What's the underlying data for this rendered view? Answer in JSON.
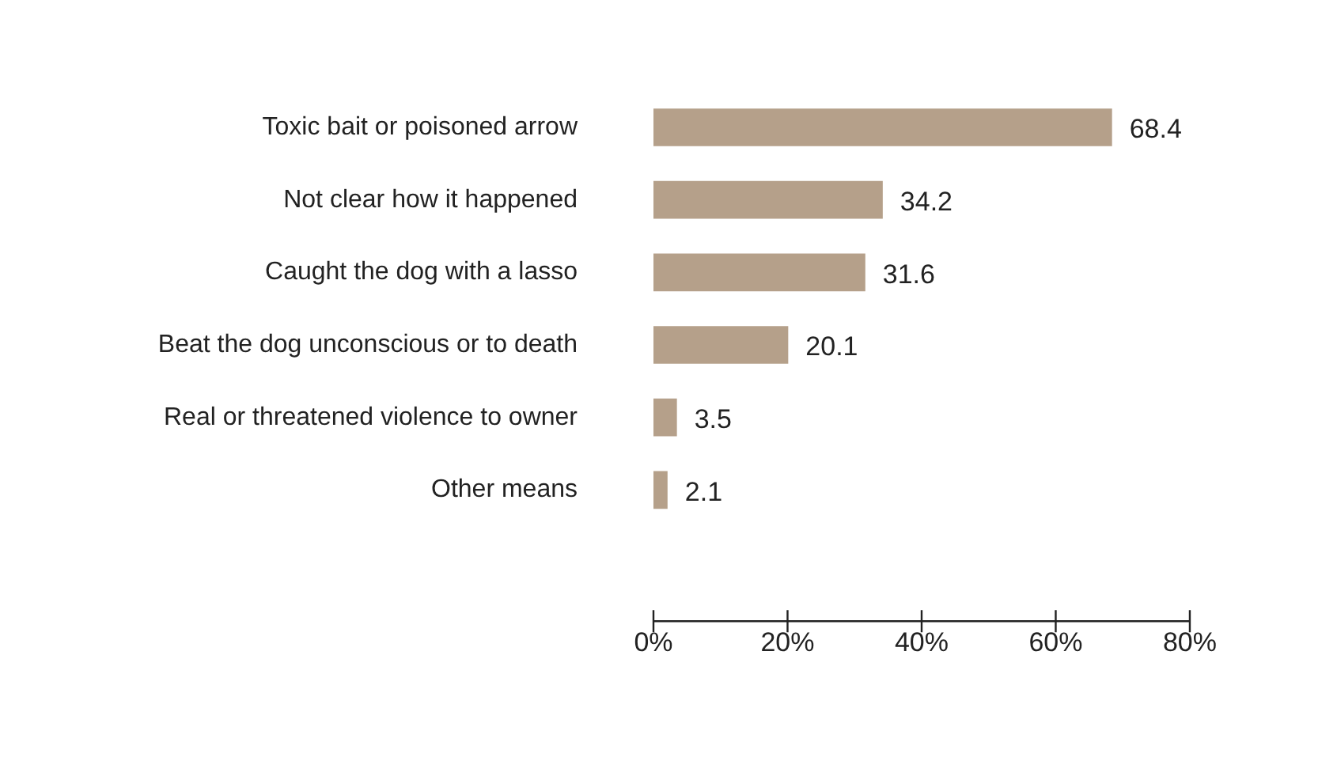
{
  "chart_data": {
    "type": "bar",
    "orientation": "horizontal",
    "categories": [
      "Toxic bait or poisoned arrow",
      "Not clear how it happened",
      "Caught the dog with a lasso",
      "Beat the dog unconscious or to death",
      "Real or threatened violence to owner",
      "Other means"
    ],
    "values": [
      68.4,
      34.2,
      31.6,
      20.1,
      3.5,
      2.1
    ],
    "color": "#b5a08a",
    "xlim": [
      0,
      80
    ],
    "xticks": [
      {
        "value": 0,
        "label": "0%"
      },
      {
        "value": 20,
        "label": "20%"
      },
      {
        "value": 40,
        "label": "40%"
      },
      {
        "value": 60,
        "label": "60%"
      },
      {
        "value": 80,
        "label": "80%"
      }
    ],
    "data_labels": true,
    "grid": false,
    "legend": false
  }
}
